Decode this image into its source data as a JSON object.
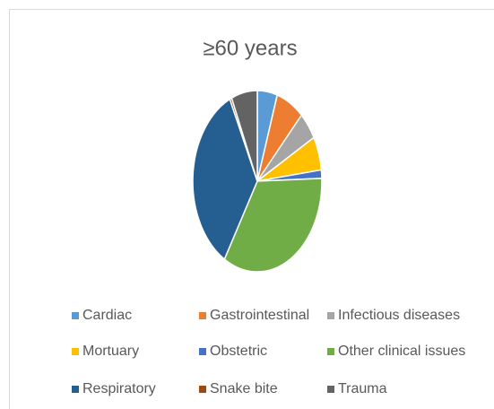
{
  "chart_data": {
    "type": "pie",
    "title": "≥60 years",
    "categories": [
      "Cardiac",
      "Gastrointestinal",
      "Infectious diseases",
      "Mortuary",
      "Obstetric",
      "Other clinical issues",
      "Respiratory",
      "Snake bite",
      "Trauma"
    ],
    "values": [
      5,
      7,
      5,
      6,
      1.5,
      34,
      34.5,
      0.5,
      6.5
    ],
    "colors": [
      "#5b9bd5",
      "#ed7d31",
      "#a5a5a5",
      "#ffc000",
      "#4472c4",
      "#70ad47",
      "#255e91",
      "#9e480e",
      "#636363"
    ],
    "legend": "bottom"
  }
}
